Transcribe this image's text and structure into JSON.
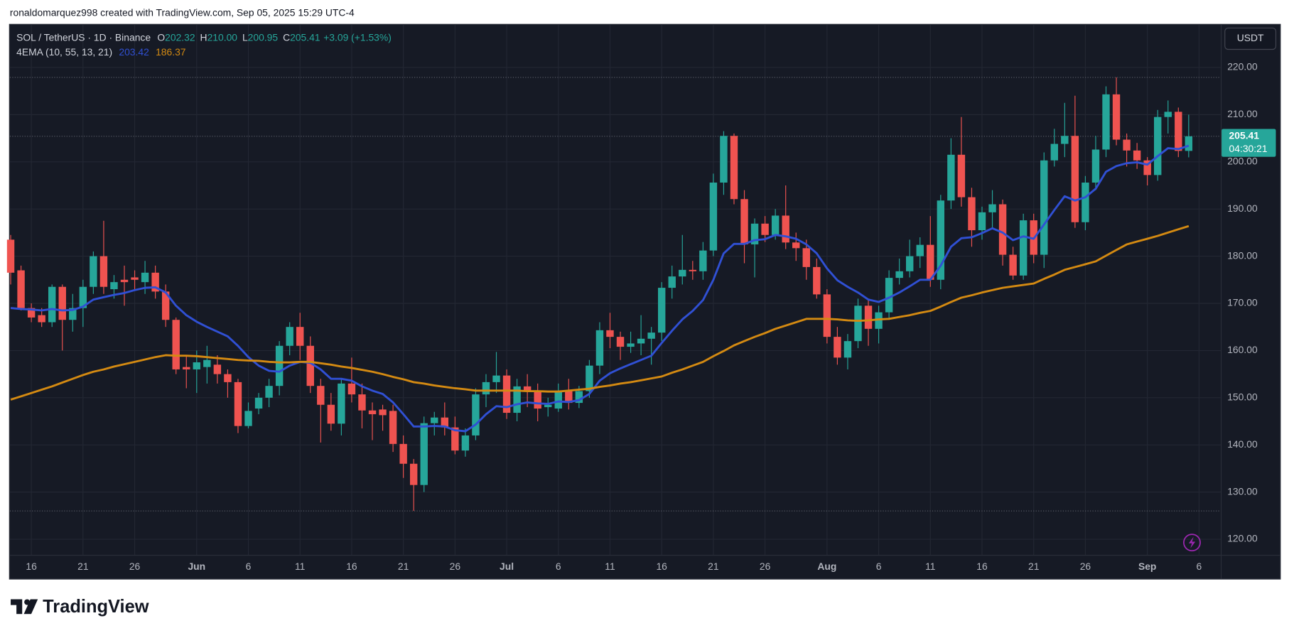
{
  "header": {
    "text": "ronaldomarquez998 created with TradingView.com, Sep 05, 2025 15:29 UTC-4"
  },
  "footer": {
    "logo": "TradingView"
  },
  "chart_data": {
    "type": "candlestick",
    "title": "SOL / TetherUS · 1D · Binance",
    "quote": {
      "items": [
        {
          "key": "O",
          "value": "202.32"
        },
        {
          "key": "H",
          "value": "210.00"
        },
        {
          "key": "L",
          "value": "200.95"
        },
        {
          "key": "C",
          "value": "205.41"
        }
      ],
      "change": "+3.09 (+1.53%)"
    },
    "indicator": "4EMA (10, 55, 13, 21)",
    "currency": "USDT",
    "countdown": "04:30:21",
    "up_color": "#26a69a",
    "down_color": "#ef5350",
    "grid": true,
    "x": [
      "May 14",
      "May 15",
      "May 16",
      "May 17",
      "May 18",
      "May 19",
      "May 20",
      "May 21",
      "May 22",
      "May 23",
      "May 24",
      "May 25",
      "May 26",
      "May 27",
      "May 28",
      "May 29",
      "May 30",
      "May 31",
      "Jun 1",
      "Jun 2",
      "Jun 3",
      "Jun 4",
      "Jun 5",
      "Jun 6",
      "Jun 7",
      "Jun 8",
      "Jun 9",
      "Jun 10",
      "Jun 11",
      "Jun 12",
      "Jun 13",
      "Jun 14",
      "Jun 15",
      "Jun 16",
      "Jun 17",
      "Jun 18",
      "Jun 19",
      "Jun 20",
      "Jun 21",
      "Jun 22",
      "Jun 23",
      "Jun 24",
      "Jun 25",
      "Jun 26",
      "Jun 27",
      "Jun 28",
      "Jun 29",
      "Jun 30",
      "Jul 1",
      "Jul 2",
      "Jul 3",
      "Jul 4",
      "Jul 5",
      "Jul 6",
      "Jul 7",
      "Jul 8",
      "Jul 9",
      "Jul 10",
      "Jul 11",
      "Jul 12",
      "Jul 13",
      "Jul 14",
      "Jul 15",
      "Jul 16",
      "Jul 17",
      "Jul 18",
      "Jul 19",
      "Jul 20",
      "Jul 21",
      "Jul 22",
      "Jul 23",
      "Jul 24",
      "Jul 25",
      "Jul 26",
      "Jul 27",
      "Jul 28",
      "Jul 29",
      "Jul 30",
      "Jul 31",
      "Aug 1",
      "Aug 2",
      "Aug 3",
      "Aug 4",
      "Aug 5",
      "Aug 6",
      "Aug 7",
      "Aug 8",
      "Aug 9",
      "Aug 10",
      "Aug 11",
      "Aug 12",
      "Aug 13",
      "Aug 14",
      "Aug 15",
      "Aug 16",
      "Aug 17",
      "Aug 18",
      "Aug 19",
      "Aug 20",
      "Aug 21",
      "Aug 22",
      "Aug 23",
      "Aug 24",
      "Aug 25",
      "Aug 26",
      "Aug 27",
      "Aug 28",
      "Aug 29",
      "Aug 30",
      "Aug 31",
      "Sep 1",
      "Sep 2",
      "Sep 3",
      "Sep 4",
      "Sep 5"
    ],
    "open": [
      183.5,
      177,
      169,
      167.5,
      166,
      173.5,
      166.5,
      169,
      173.5,
      180,
      173,
      175,
      175.5,
      174.5,
      176.5,
      172.5,
      166.5,
      156.5,
      156,
      156.5,
      157,
      155,
      153.3,
      144,
      147.7,
      150,
      152.5,
      161,
      165,
      161,
      152.5,
      148.5,
      144.5,
      153,
      150.7,
      147.3,
      147.5,
      147.2,
      140.2,
      136,
      131.5,
      144.6,
      145.8,
      143.7,
      138.8,
      142,
      150.7,
      153.3,
      154.7,
      146.8,
      152.4,
      151.5,
      148,
      147.7,
      151.5,
      148.9,
      151.4,
      156.8,
      164.3,
      162.9,
      160.8,
      161.5,
      162.5,
      163.8,
      173.3,
      175.7,
      177.1,
      176.8,
      181.2,
      195.6,
      205.5,
      192.1,
      182.5,
      186.9,
      184.5,
      188.6,
      182.9,
      181.7,
      177.7,
      171.9,
      162.9,
      158.5,
      162,
      169.5,
      164.6,
      168.1,
      175.4,
      176.8,
      180,
      182.4,
      175,
      191.8,
      201.5,
      192.5,
      185.5,
      189.3,
      191,
      180.3,
      175.9,
      187.6,
      180.3,
      200.3,
      203.8,
      205.5,
      187.2,
      195.6,
      202.6,
      214.3,
      204.7,
      202.4,
      200.3,
      197.2,
      209.5,
      210.6,
      202.32
    ],
    "high": [
      184.5,
      178,
      170,
      169,
      174,
      174,
      172,
      175,
      181,
      187.5,
      176,
      178,
      177,
      179,
      178,
      174,
      167,
      159,
      160,
      161,
      159,
      156,
      154,
      149,
      151,
      154,
      162,
      166,
      168,
      163,
      154,
      151,
      154,
      158.5,
      153,
      149,
      148.5,
      148.5,
      142,
      137,
      146,
      147,
      149,
      146,
      143.5,
      152,
      155,
      159.7,
      156,
      154,
      155,
      153,
      150,
      153,
      154,
      152.5,
      158,
      166,
      168,
      164,
      164,
      167.5,
      165,
      174.5,
      178,
      184.5,
      179,
      183,
      197.5,
      206.5,
      206,
      194,
      188,
      188.5,
      190,
      195,
      185,
      183.5,
      179.5,
      173,
      165,
      163.5,
      171,
      171,
      169.5,
      177,
      179.5,
      183.5,
      184,
      188.5,
      193,
      205,
      209.5,
      194.5,
      190.5,
      194,
      192,
      182,
      189,
      189,
      202,
      207,
      212.5,
      214,
      197,
      205.5,
      216,
      217.9,
      206,
      204,
      201,
      211,
      213,
      211.5,
      210
    ],
    "low": [
      174,
      168.5,
      166,
      165,
      165,
      160,
      164,
      165,
      172,
      172,
      171,
      169.5,
      173,
      172,
      171,
      165,
      155,
      152,
      151,
      153,
      153,
      150,
      142.5,
      143.5,
      146.5,
      148,
      150.5,
      159,
      158,
      151,
      140.5,
      143,
      142,
      149,
      143.5,
      141,
      143,
      138.5,
      133,
      126,
      130,
      142,
      142,
      138,
      137.5,
      141,
      148,
      151,
      145.5,
      145,
      148,
      145,
      146,
      147,
      147.5,
      147.8,
      150,
      155,
      160.5,
      158,
      159.5,
      159,
      157,
      162,
      171,
      174,
      175,
      175,
      180,
      193,
      191,
      178.5,
      175.5,
      183,
      183.5,
      181.5,
      179,
      175,
      171,
      161.5,
      157,
      156,
      160.5,
      161,
      161.5,
      166.5,
      174,
      175.5,
      177.5,
      173.5,
      173,
      190,
      190.5,
      182,
      183.5,
      186,
      178,
      175,
      175,
      178.5,
      177.5,
      199,
      201,
      186,
      185.5,
      194,
      201,
      203.5,
      199,
      198.5,
      195,
      196,
      206,
      201,
      200.95
    ],
    "close": [
      176.5,
      169,
      167,
      166,
      173.5,
      166.5,
      169,
      173.5,
      180,
      173.5,
      174.5,
      174.5,
      175,
      176.5,
      172.5,
      166.5,
      156,
      156,
      157.5,
      158,
      155,
      153.3,
      144,
      147.2,
      150,
      152.5,
      161,
      165,
      161,
      152.5,
      148.5,
      144.5,
      153,
      150.7,
      147.3,
      146.5,
      146.3,
      140.2,
      136,
      131.5,
      144.6,
      145.8,
      143.7,
      138.8,
      142,
      150.7,
      153.3,
      154.7,
      146.8,
      152.4,
      151.5,
      147.7,
      148.5,
      151.5,
      148.9,
      151.4,
      156.8,
      164.3,
      162.9,
      160.8,
      161.5,
      162.5,
      163.8,
      173.3,
      175.7,
      177.1,
      176.8,
      181.2,
      195.6,
      205.5,
      192.1,
      182.5,
      186.9,
      184.5,
      188.6,
      182.9,
      181.7,
      177.7,
      171.9,
      162.9,
      158.5,
      162,
      169.5,
      164.6,
      168.1,
      175.4,
      176.8,
      180,
      182.4,
      175,
      191.8,
      201.5,
      192.5,
      185.5,
      189.3,
      191,
      180.3,
      175.9,
      187.6,
      180.3,
      200.3,
      203.8,
      205.5,
      187.2,
      195.6,
      202.6,
      214.3,
      204.7,
      202.4,
      200.3,
      197.2,
      209.5,
      210.6,
      202.32,
      205.41
    ],
    "overlays": [
      {
        "color": "#3050d4",
        "values": [
          169,
          168.8,
          168.7,
          168.5,
          168.8,
          168.5,
          168.6,
          169.3,
          170.8,
          171.3,
          171.8,
          172.2,
          172.8,
          173.3,
          173.4,
          172.3,
          169.5,
          167.5,
          166.1,
          165,
          164,
          163,
          161,
          158.6,
          156.8,
          155.7,
          155.5,
          156.8,
          157.6,
          157.4,
          156,
          154,
          154,
          153.6,
          152.4,
          151.5,
          150.8,
          149,
          146.5,
          143.9,
          143.9,
          144,
          143.9,
          143.1,
          142.9,
          144.3,
          146.5,
          148.2,
          148,
          148.6,
          149,
          148.8,
          148.7,
          149.2,
          149.1,
          149.5,
          150.8,
          153.6,
          155.2,
          156.2,
          157.1,
          158,
          158.9,
          161.6,
          164.2,
          166.6,
          168.4,
          170.7,
          175,
          180.6,
          182.6,
          182.6,
          183.4,
          183.6,
          184.5,
          184.2,
          183.7,
          182.5,
          180.6,
          177.4,
          174.9,
          173.5,
          172.3,
          170.8,
          170.3,
          171.2,
          172.3,
          173.6,
          175,
          175,
          178,
          182,
          183.8,
          184,
          184.9,
          185.9,
          185,
          183.4,
          184.2,
          183.7,
          186.7,
          189.8,
          192.7,
          191.8,
          192.5,
          194.3,
          197.9,
          199.1,
          199.7,
          199.9,
          199.4,
          201.2,
          202.9,
          202.7,
          203.42
        ]
      },
      {
        "color": "#d48a12",
        "values": [
          149.6,
          150.3,
          151,
          151.7,
          152.4,
          153.2,
          154,
          154.8,
          155.5,
          156,
          156.6,
          157.1,
          157.6,
          158.1,
          158.6,
          159,
          158.9,
          158.9,
          158.8,
          158.6,
          158.4,
          158.2,
          158,
          157.9,
          157.8,
          157.6,
          157.5,
          157.5,
          157.6,
          157.6,
          157.3,
          157,
          156.6,
          156.3,
          155.9,
          155.5,
          155,
          154.4,
          153.9,
          153.3,
          153,
          152.6,
          152.3,
          152,
          151.8,
          151.5,
          151.5,
          151.5,
          151.5,
          151.5,
          151.4,
          151.4,
          151.3,
          151.3,
          151.5,
          151.7,
          151.9,
          152.3,
          152.6,
          153,
          153.3,
          153.7,
          154.1,
          154.5,
          155.3,
          156,
          156.8,
          157.6,
          158.8,
          159.9,
          161.1,
          162,
          162.9,
          163.7,
          164.6,
          165.3,
          166,
          166.7,
          166.7,
          166.7,
          166.6,
          166.4,
          166.3,
          166.4,
          166.6,
          166.7,
          167.1,
          167.5,
          168,
          168.4,
          169.3,
          170.3,
          171.2,
          171.7,
          172.3,
          172.8,
          173.3,
          173.6,
          173.9,
          174.2,
          175.2,
          176.1,
          177.1,
          177.7,
          178.3,
          178.9,
          180.1,
          181.3,
          182.5,
          183.1,
          183.7,
          184.3,
          185,
          185.7,
          186.37
        ]
      }
    ],
    "ylim": [
      116.69,
      229.06
    ],
    "yticks": [
      {
        "value": 120,
        "label": "120.00"
      },
      {
        "value": 130,
        "label": "130.00"
      },
      {
        "value": 140,
        "label": "140.00"
      },
      {
        "value": 150,
        "label": "150.00"
      },
      {
        "value": 160,
        "label": "160.00"
      },
      {
        "value": 170,
        "label": "170.00"
      },
      {
        "value": 180,
        "label": "180.00"
      },
      {
        "value": 190,
        "label": "190.00"
      },
      {
        "value": 200,
        "label": "200.00"
      },
      {
        "value": 210,
        "label": "210.00"
      },
      {
        "value": 220,
        "label": "220.00"
      }
    ],
    "xticks": [
      {
        "value": "May 16",
        "label": "16"
      },
      {
        "value": "May 21",
        "label": "21"
      },
      {
        "value": "May 26",
        "label": "26"
      },
      {
        "value": "Jun 1",
        "label": "Jun"
      },
      {
        "value": "Jun 6",
        "label": "6"
      },
      {
        "value": "Jun 11",
        "label": "11"
      },
      {
        "value": "Jun 16",
        "label": "16"
      },
      {
        "value": "Jun 21",
        "label": "21"
      },
      {
        "value": "Jun 26",
        "label": "26"
      },
      {
        "value": "Jul 1",
        "label": "Jul"
      },
      {
        "value": "Jul 6",
        "label": "6"
      },
      {
        "value": "Jul 11",
        "label": "11"
      },
      {
        "value": "Jul 16",
        "label": "16"
      },
      {
        "value": "Jul 21",
        "label": "21"
      },
      {
        "value": "Jul 26",
        "label": "26"
      },
      {
        "value": "Aug 1",
        "label": "Aug"
      },
      {
        "value": "Aug 6",
        "label": "6"
      },
      {
        "value": "Aug 11",
        "label": "11"
      },
      {
        "value": "Aug 16",
        "label": "16"
      },
      {
        "value": "Aug 21",
        "label": "21"
      },
      {
        "value": "Aug 26",
        "label": "26"
      },
      {
        "value": "Sep 1",
        "label": "Sep"
      },
      {
        "value": "Sep 6",
        "label": "6"
      }
    ]
  }
}
